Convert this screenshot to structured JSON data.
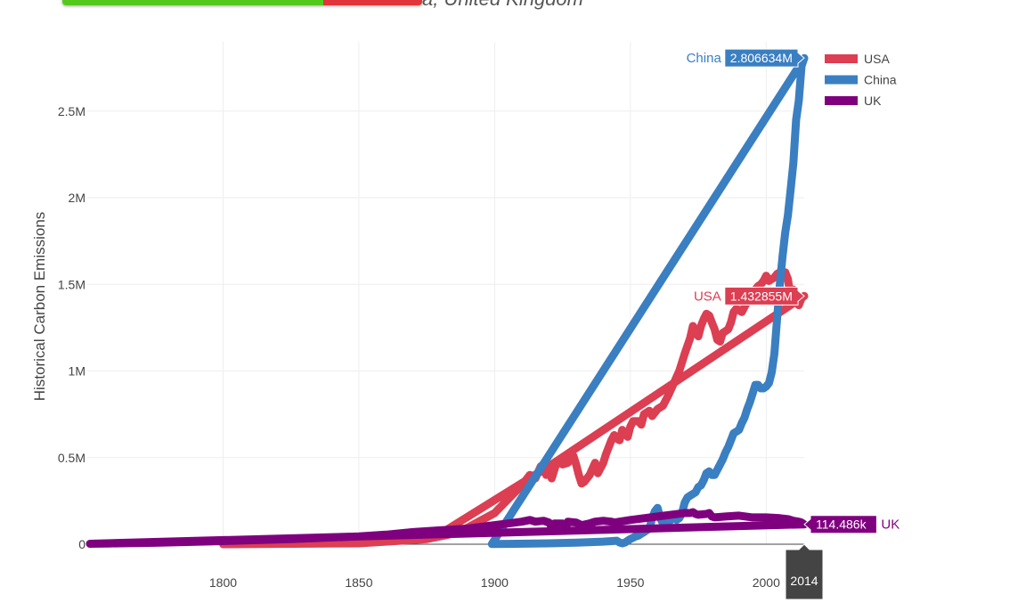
{
  "header": {
    "title_fragment": "a, United Kingdom"
  },
  "chart_data": {
    "type": "line",
    "title": "",
    "xlabel": "",
    "ylabel": "Historical Carbon Emissions",
    "xlim": [
      1750,
      2014
    ],
    "ylim": [
      0,
      2900000
    ],
    "x_ticks": [
      1800,
      1850,
      1900,
      1950,
      2000
    ],
    "y_ticks": [
      0,
      500000,
      1000000,
      1500000,
      2000000,
      2500000
    ],
    "y_tick_labels": [
      "0",
      "0.5M",
      "1M",
      "1.5M",
      "2M",
      "2.5M"
    ],
    "grid": true,
    "legend": "top-right",
    "series": [
      {
        "name": "USA",
        "color": "#dc3e52",
        "points": [
          [
            1800,
            253
          ],
          [
            1850,
            5000
          ],
          [
            1875,
            30000
          ],
          [
            1883,
            55000
          ],
          [
            1890,
            95000
          ],
          [
            1900,
            180000
          ],
          [
            1905,
            260000
          ],
          [
            1910,
            340000
          ],
          [
            1913,
            400000
          ],
          [
            1915,
            380000
          ],
          [
            1917,
            450000
          ],
          [
            1918,
            460000
          ],
          [
            1919,
            400000
          ],
          [
            1920,
            450000
          ],
          [
            1921,
            380000
          ],
          [
            1923,
            480000
          ],
          [
            1925,
            460000
          ],
          [
            1927,
            470000
          ],
          [
            1929,
            510000
          ],
          [
            1930,
            460000
          ],
          [
            1931,
            400000
          ],
          [
            1932,
            350000
          ],
          [
            1933,
            360000
          ],
          [
            1935,
            400000
          ],
          [
            1937,
            470000
          ],
          [
            1938,
            410000
          ],
          [
            1940,
            470000
          ],
          [
            1941,
            520000
          ],
          [
            1943,
            600000
          ],
          [
            1944,
            630000
          ],
          [
            1945,
            610000
          ],
          [
            1946,
            600000
          ],
          [
            1947,
            660000
          ],
          [
            1949,
            620000
          ],
          [
            1950,
            680000
          ],
          [
            1951,
            710000
          ],
          [
            1953,
            710000
          ],
          [
            1954,
            690000
          ],
          [
            1955,
            750000
          ],
          [
            1957,
            770000
          ],
          [
            1958,
            740000
          ],
          [
            1960,
            780000
          ],
          [
            1962,
            800000
          ],
          [
            1964,
            860000
          ],
          [
            1966,
            930000
          ],
          [
            1968,
            1000000
          ],
          [
            1969,
            1050000
          ],
          [
            1970,
            1100000
          ],
          [
            1972,
            1190000
          ],
          [
            1973,
            1260000
          ],
          [
            1974,
            1230000
          ],
          [
            1975,
            1200000
          ],
          [
            1976,
            1260000
          ],
          [
            1977,
            1300000
          ],
          [
            1978,
            1330000
          ],
          [
            1979,
            1320000
          ],
          [
            1980,
            1280000
          ],
          [
            1981,
            1240000
          ],
          [
            1982,
            1180000
          ],
          [
            1983,
            1170000
          ],
          [
            1984,
            1220000
          ],
          [
            1985,
            1230000
          ],
          [
            1986,
            1240000
          ],
          [
            1987,
            1280000
          ],
          [
            1988,
            1340000
          ],
          [
            1989,
            1360000
          ],
          [
            1990,
            1350000
          ],
          [
            1991,
            1340000
          ],
          [
            1992,
            1370000
          ],
          [
            1993,
            1400000
          ],
          [
            1994,
            1420000
          ],
          [
            1995,
            1430000
          ],
          [
            1996,
            1470000
          ],
          [
            1997,
            1490000
          ],
          [
            1998,
            1500000
          ],
          [
            1999,
            1520000
          ],
          [
            2000,
            1550000
          ],
          [
            2001,
            1520000
          ],
          [
            2002,
            1530000
          ],
          [
            2003,
            1540000
          ],
          [
            2004,
            1560000
          ],
          [
            2005,
            1570000
          ],
          [
            2006,
            1550000
          ],
          [
            2007,
            1570000
          ],
          [
            2008,
            1530000
          ],
          [
            2009,
            1420000
          ],
          [
            2010,
            1470000
          ],
          [
            2011,
            1440000
          ],
          [
            2012,
            1380000
          ],
          [
            2013,
            1420000
          ],
          [
            2014,
            1432855
          ],
          [
            1920,
            450000
          ],
          [
            1880,
            60000
          ]
        ]
      },
      {
        "name": "China",
        "color": "#3a7fc1",
        "points": [
          [
            1899,
            1000
          ],
          [
            1905,
            2000
          ],
          [
            1920,
            5000
          ],
          [
            1930,
            9000
          ],
          [
            1940,
            15000
          ],
          [
            1945,
            20000
          ],
          [
            1946,
            10000
          ],
          [
            1947,
            5000
          ],
          [
            1948,
            10000
          ],
          [
            1949,
            20000
          ],
          [
            1950,
            30000
          ],
          [
            1952,
            45000
          ],
          [
            1953,
            50000
          ],
          [
            1954,
            60000
          ],
          [
            1955,
            70000
          ],
          [
            1956,
            80000
          ],
          [
            1957,
            90000
          ],
          [
            1958,
            150000
          ],
          [
            1959,
            190000
          ],
          [
            1960,
            210000
          ],
          [
            1961,
            150000
          ],
          [
            1962,
            120000
          ],
          [
            1963,
            125000
          ],
          [
            1964,
            130000
          ],
          [
            1965,
            140000
          ],
          [
            1966,
            160000
          ],
          [
            1967,
            140000
          ],
          [
            1968,
            150000
          ],
          [
            1969,
            180000
          ],
          [
            1970,
            240000
          ],
          [
            1971,
            270000
          ],
          [
            1972,
            280000
          ],
          [
            1973,
            290000
          ],
          [
            1974,
            300000
          ],
          [
            1975,
            330000
          ],
          [
            1976,
            340000
          ],
          [
            1977,
            370000
          ],
          [
            1978,
            410000
          ],
          [
            1979,
            420000
          ],
          [
            1980,
            400000
          ],
          [
            1981,
            400000
          ],
          [
            1982,
            430000
          ],
          [
            1983,
            460000
          ],
          [
            1984,
            490000
          ],
          [
            1985,
            530000
          ],
          [
            1986,
            560000
          ],
          [
            1987,
            600000
          ],
          [
            1988,
            640000
          ],
          [
            1989,
            650000
          ],
          [
            1990,
            660000
          ],
          [
            1991,
            700000
          ],
          [
            1992,
            730000
          ],
          [
            1993,
            780000
          ],
          [
            1994,
            820000
          ],
          [
            1995,
            870000
          ],
          [
            1996,
            920000
          ],
          [
            1997,
            920000
          ],
          [
            1998,
            900000
          ],
          [
            1999,
            900000
          ],
          [
            2000,
            910000
          ],
          [
            2001,
            930000
          ],
          [
            2002,
            990000
          ],
          [
            2003,
            1100000
          ],
          [
            2004,
            1300000
          ],
          [
            2005,
            1500000
          ],
          [
            2006,
            1660000
          ],
          [
            2007,
            1800000
          ],
          [
            2008,
            1900000
          ],
          [
            2009,
            2050000
          ],
          [
            2010,
            2200000
          ],
          [
            2011,
            2450000
          ],
          [
            2012,
            2560000
          ],
          [
            2013,
            2760000
          ],
          [
            2014,
            2806634
          ],
          [
            1899,
            1000
          ]
        ]
      },
      {
        "name": "UK",
        "color": "#7f007f",
        "points": [
          [
            1751,
            2552
          ],
          [
            1775,
            8000
          ],
          [
            1800,
            18000
          ],
          [
            1825,
            30000
          ],
          [
            1850,
            45000
          ],
          [
            1860,
            55000
          ],
          [
            1870,
            70000
          ],
          [
            1880,
            80000
          ],
          [
            1890,
            90000
          ],
          [
            1900,
            110000
          ],
          [
            1905,
            120000
          ],
          [
            1910,
            130000
          ],
          [
            1913,
            140000
          ],
          [
            1915,
            130000
          ],
          [
            1918,
            135000
          ],
          [
            1920,
            125000
          ],
          [
            1921,
            100000
          ],
          [
            1922,
            120000
          ],
          [
            1925,
            120000
          ],
          [
            1926,
            90000
          ],
          [
            1927,
            130000
          ],
          [
            1930,
            125000
          ],
          [
            1932,
            110000
          ],
          [
            1935,
            120000
          ],
          [
            1937,
            130000
          ],
          [
            1940,
            135000
          ],
          [
            1943,
            130000
          ],
          [
            1944,
            125000
          ],
          [
            1946,
            130000
          ],
          [
            1950,
            140000
          ],
          [
            1955,
            150000
          ],
          [
            1960,
            160000
          ],
          [
            1965,
            170000
          ],
          [
            1970,
            180000
          ],
          [
            1972,
            180000
          ],
          [
            1973,
            185000
          ],
          [
            1974,
            175000
          ],
          [
            1975,
            170000
          ],
          [
            1978,
            175000
          ],
          [
            1979,
            180000
          ],
          [
            1980,
            160000
          ],
          [
            1981,
            155000
          ],
          [
            1985,
            160000
          ],
          [
            1990,
            165000
          ],
          [
            1995,
            155000
          ],
          [
            2000,
            155000
          ],
          [
            2005,
            150000
          ],
          [
            2008,
            145000
          ],
          [
            2010,
            135000
          ],
          [
            2012,
            130000
          ],
          [
            2013,
            125000
          ],
          [
            2014,
            114486
          ],
          [
            1751,
            2552
          ]
        ]
      }
    ],
    "hover_labels": [
      {
        "series": "China",
        "name": "China",
        "value": "2.806634M",
        "side": "left"
      },
      {
        "series": "USA",
        "name": "USA",
        "value": "1.432855M",
        "side": "left"
      },
      {
        "series": "UK",
        "name": "UK",
        "value": "114.486k",
        "side": "right"
      }
    ],
    "x_hover_label": "2014"
  }
}
